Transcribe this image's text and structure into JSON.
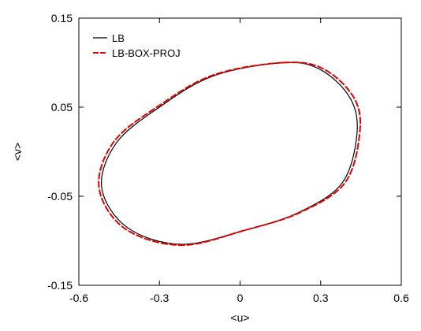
{
  "chart_data": {
    "type": "line",
    "xlabel": "<u>",
    "ylabel": "<v>",
    "xlim": [
      -0.6,
      0.6
    ],
    "ylim": [
      -0.15,
      0.15
    ],
    "grid": false,
    "legend_position": "top-left",
    "x_ticks": [
      {
        "value": -0.6,
        "label": "-0.6"
      },
      {
        "value": -0.3,
        "label": "-0.3"
      },
      {
        "value": 0,
        "label": "0"
      },
      {
        "value": 0.3,
        "label": "0.3"
      },
      {
        "value": 0.6,
        "label": "0.6"
      }
    ],
    "y_ticks": [
      {
        "value": -0.15,
        "label": "-0.15"
      },
      {
        "value": -0.05,
        "label": "-0.05"
      },
      {
        "value": 0.05,
        "label": "0.05"
      },
      {
        "value": 0.15,
        "label": "0.15"
      }
    ],
    "series": [
      {
        "name": "LB",
        "color": "#000000",
        "style": "solid",
        "x": [
          0.16,
          0.3,
          0.41,
          0.435,
          0.38,
          0.22,
          0.02,
          -0.22,
          -0.42,
          -0.515,
          -0.46,
          -0.3,
          -0.1,
          0.16
        ],
        "y": [
          0.1,
          0.092,
          0.06,
          0.02,
          -0.035,
          -0.068,
          -0.088,
          -0.104,
          -0.085,
          -0.04,
          0.01,
          0.05,
          0.085,
          0.1
        ]
      },
      {
        "name": "LB-BOX-PROJ",
        "color": "#e00000",
        "style": "dashed",
        "x": [
          0.16,
          0.31,
          0.425,
          0.445,
          0.39,
          0.225,
          0.02,
          -0.22,
          -0.43,
          -0.525,
          -0.47,
          -0.305,
          -0.1,
          0.16
        ],
        "y": [
          0.1,
          0.093,
          0.06,
          0.02,
          -0.035,
          -0.068,
          -0.088,
          -0.105,
          -0.086,
          -0.04,
          0.011,
          0.051,
          0.086,
          0.1
        ]
      }
    ]
  }
}
